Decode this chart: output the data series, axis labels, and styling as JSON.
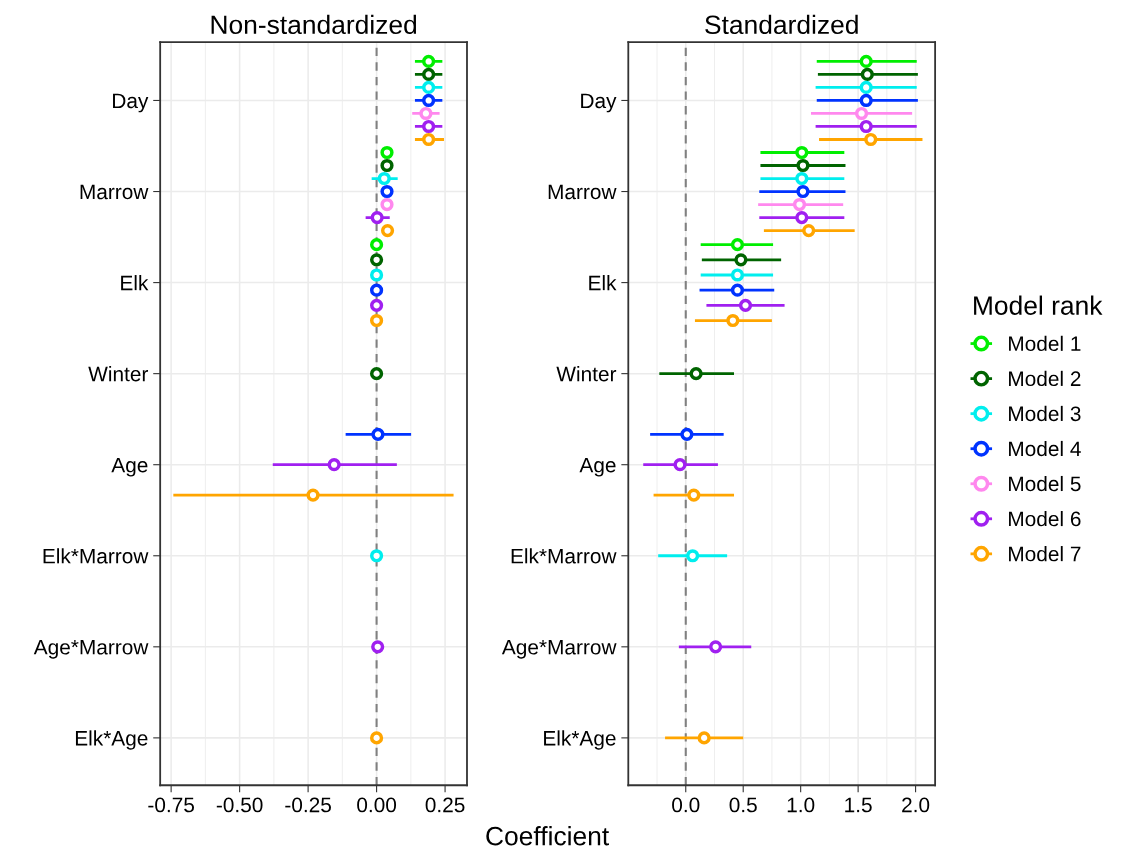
{
  "chart_data": [
    {
      "type": "scatter",
      "orientation": "horizontal",
      "title": "Non-standardized",
      "xlabel": "Coefficient",
      "legend": "right",
      "legend_title": "Model rank",
      "categories": [
        "Day",
        "Marrow",
        "Elk",
        "Winter",
        "Age",
        "Elk*Marrow",
        "Age*Marrow",
        "Elk*Age"
      ],
      "xlim": [
        -0.79,
        0.33
      ],
      "xticks": [
        -0.75,
        {
          "value": -0.5,
          "label": "-0.50"
        },
        -0.25,
        {
          "value": 0,
          "label": "0.00"
        },
        0.25
      ],
      "grid": true,
      "marker": "circle",
      "ref_lines": [
        {
          "axis": "x",
          "value": 0,
          "color": "#808080",
          "line_style": "dashed"
        }
      ],
      "series": [
        {
          "name": "Model 1",
          "color": "#00ee00",
          "values": [
            0.19,
            0.038,
            0.0,
            null,
            null,
            null,
            null,
            null
          ],
          "errors": [
            [
              0.14,
              0.24
            ],
            null,
            null,
            null,
            null,
            null,
            null,
            null
          ]
        },
        {
          "name": "Model 2",
          "color": "#006400",
          "values": [
            0.19,
            0.038,
            0.0,
            0.0,
            null,
            null,
            null,
            null
          ],
          "errors": [
            [
              0.14,
              0.24
            ],
            null,
            null,
            null,
            null,
            null,
            null,
            null
          ]
        },
        {
          "name": "Model 3",
          "color": "#00eeee",
          "values": [
            0.19,
            0.028,
            0.0,
            null,
            null,
            0.0,
            null,
            null
          ],
          "errors": [
            [
              0.14,
              0.24
            ],
            [
              -0.018,
              0.077
            ],
            null,
            null,
            null,
            null,
            null,
            null
          ]
        },
        {
          "name": "Model 4",
          "color": "#0033ff",
          "values": [
            0.19,
            0.038,
            0.0,
            null,
            0.005,
            null,
            null,
            null
          ],
          "errors": [
            [
              0.14,
              0.24
            ],
            null,
            null,
            null,
            [
              -0.113,
              0.126
            ],
            null,
            null,
            null
          ]
        },
        {
          "name": "Model 5",
          "color": "#ff88ee",
          "values": [
            0.18,
            0.038,
            null,
            null,
            null,
            null,
            null,
            null
          ],
          "errors": [
            [
              0.13,
              0.23
            ],
            null,
            null,
            null,
            null,
            null,
            null,
            null
          ]
        },
        {
          "name": "Model 6",
          "color": "#a020f0",
          "values": [
            0.19,
            0.002,
            0.0,
            null,
            -0.155,
            null,
            0.004,
            null
          ],
          "errors": [
            [
              0.14,
              0.24
            ],
            [
              -0.04,
              0.048
            ],
            null,
            null,
            [
              -0.379,
              0.074
            ],
            null,
            null,
            null
          ]
        },
        {
          "name": "Model 7",
          "color": "#ffa500",
          "values": [
            0.19,
            0.04,
            0.0,
            null,
            -0.232,
            null,
            null,
            0.0
          ],
          "errors": [
            [
              0.14,
              0.246
            ],
            null,
            null,
            null,
            [
              -0.742,
              0.281
            ],
            null,
            null,
            null
          ]
        }
      ]
    },
    {
      "type": "scatter",
      "orientation": "horizontal",
      "title": "Standardized",
      "categories": [
        "Day",
        "Marrow",
        "Elk",
        "Winter",
        "Age",
        "Elk*Marrow",
        "Age*Marrow",
        "Elk*Age"
      ],
      "xlim": [
        -0.5,
        2.17
      ],
      "xticks": [
        {
          "value": 0,
          "label": "0.0"
        },
        0.5,
        {
          "value": 1,
          "label": "1.0"
        },
        1.5,
        {
          "value": 2,
          "label": "2.0"
        }
      ],
      "grid": true,
      "marker": "circle",
      "ref_lines": [
        {
          "axis": "x",
          "value": 0,
          "color": "#808080",
          "line_style": "dashed"
        }
      ],
      "series": [
        {
          "color": "#00ee00",
          "values": [
            1.57,
            1.01,
            0.45,
            null,
            null,
            null,
            null,
            null
          ],
          "errors": [
            [
              1.14,
              2.01
            ],
            [
              0.65,
              1.38
            ],
            [
              0.13,
              0.76
            ],
            null,
            null,
            null,
            null,
            null
          ]
        },
        {
          "color": "#006400",
          "values": [
            1.58,
            1.02,
            0.48,
            0.09,
            null,
            null,
            null,
            null
          ],
          "errors": [
            [
              1.15,
              2.02
            ],
            [
              0.65,
              1.39
            ],
            [
              0.14,
              0.83
            ],
            [
              -0.23,
              0.42
            ],
            null,
            null,
            null,
            null
          ]
        },
        {
          "color": "#00eeee",
          "values": [
            1.57,
            1.01,
            0.45,
            null,
            null,
            0.06,
            null,
            null
          ],
          "errors": [
            [
              1.13,
              2.01
            ],
            [
              0.65,
              1.38
            ],
            [
              0.13,
              0.76
            ],
            null,
            null,
            [
              -0.24,
              0.36
            ],
            null,
            null
          ]
        },
        {
          "color": "#0033ff",
          "values": [
            1.57,
            1.02,
            0.45,
            null,
            0.01,
            null,
            null,
            null
          ],
          "errors": [
            [
              1.14,
              2.02
            ],
            [
              0.64,
              1.39
            ],
            [
              0.12,
              0.77
            ],
            null,
            [
              -0.31,
              0.33
            ],
            null,
            null,
            null
          ]
        },
        {
          "color": "#ff88ee",
          "values": [
            1.53,
            0.99,
            null,
            null,
            null,
            null,
            null,
            null
          ],
          "errors": [
            [
              1.09,
              1.97
            ],
            [
              0.63,
              1.37
            ],
            null,
            null,
            null,
            null,
            null,
            null
          ]
        },
        {
          "color": "#a020f0",
          "values": [
            1.57,
            1.01,
            0.52,
            null,
            -0.05,
            null,
            0.26,
            null
          ],
          "errors": [
            [
              1.13,
              2.01
            ],
            [
              0.64,
              1.38
            ],
            [
              0.18,
              0.86
            ],
            null,
            [
              -0.37,
              0.28
            ],
            null,
            [
              -0.06,
              0.57
            ],
            null
          ]
        },
        {
          "color": "#ffa500",
          "values": [
            1.61,
            1.07,
            0.41,
            null,
            0.07,
            null,
            null,
            0.16
          ],
          "errors": [
            [
              1.16,
              2.06
            ],
            [
              0.68,
              1.47
            ],
            [
              0.08,
              0.75
            ],
            null,
            [
              -0.28,
              0.42
            ],
            null,
            null,
            [
              -0.18,
              0.5
            ]
          ]
        }
      ]
    }
  ]
}
